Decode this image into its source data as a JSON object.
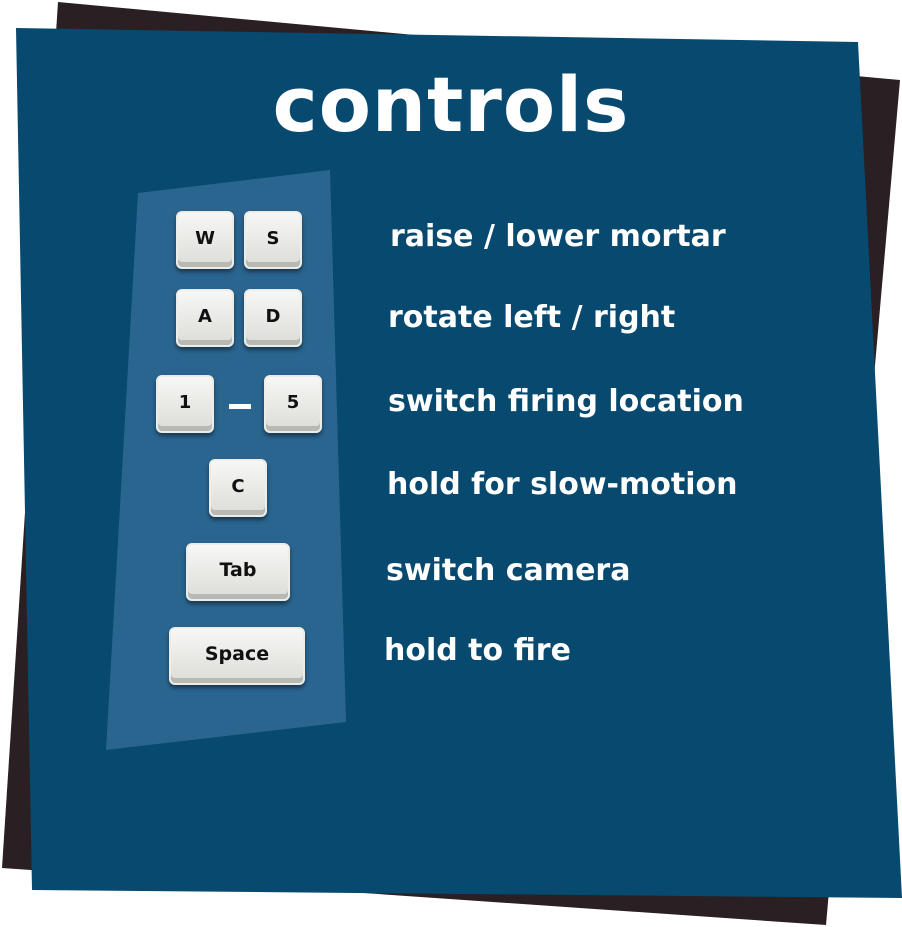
{
  "title": "controls",
  "colors": {
    "panel": "#08496f",
    "shadow_card": "#2a1f22",
    "key_column": "#2a6590",
    "text": "#ffffff",
    "key_face": "#e8e8e4"
  },
  "controls": [
    {
      "keys": [
        "W",
        "S"
      ],
      "description": "raise / lower mortar"
    },
    {
      "keys": [
        "A",
        "D"
      ],
      "description": "rotate left / right"
    },
    {
      "keys": [
        "1",
        "5"
      ],
      "range": true,
      "description": "switch firing location"
    },
    {
      "keys": [
        "C"
      ],
      "description": "hold for slow-motion"
    },
    {
      "keys": [
        "Tab"
      ],
      "description": "switch camera"
    },
    {
      "keys": [
        "Space"
      ],
      "description": "hold to fire"
    }
  ]
}
